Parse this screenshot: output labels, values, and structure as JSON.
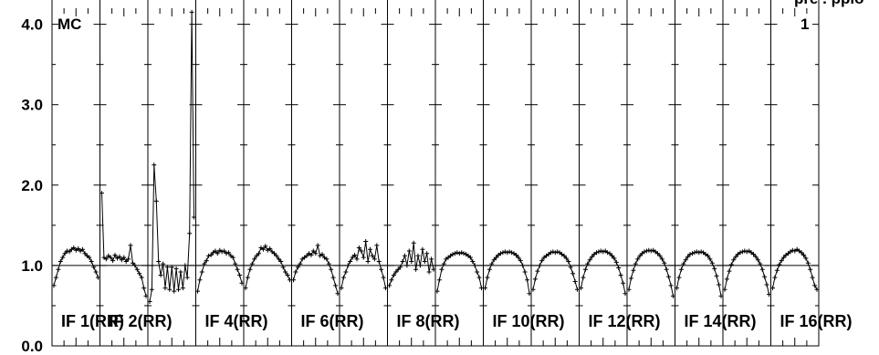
{
  "chart_data": {
    "type": "line",
    "ylim": [
      0,
      4.2
    ],
    "yticks": [
      "0.0",
      "1.0",
      "2.0",
      "3.0",
      "4.0"
    ],
    "corner_left": "MC",
    "corner_right": "1",
    "grid": true,
    "panels": [
      {
        "label": "IF 1(RR)",
        "values": [
          0.75,
          0.85,
          0.95,
          1.05,
          1.1,
          1.15,
          1.18,
          1.17,
          1.2,
          1.22,
          1.19,
          1.21,
          1.18,
          1.2,
          1.15,
          1.12,
          1.1,
          1.05,
          0.98,
          0.92,
          0.85
        ]
      },
      {
        "label": "IF 2(RR)",
        "values": [
          1.9,
          1.1,
          1.08,
          1.12,
          1.1,
          1.06,
          1.13,
          1.09,
          1.11,
          1.07,
          1.1,
          1.05,
          1.08,
          1.25,
          1.03,
          1.0,
          0.95,
          0.9,
          0.85,
          0.72,
          0.62
        ]
      },
      {
        "label": "",
        "values": [
          0.55,
          0.7,
          2.25,
          1.8,
          1.05,
          0.88,
          1.02,
          0.72,
          0.98,
          0.7,
          0.98,
          0.68,
          0.96,
          0.7,
          0.92,
          0.72,
          1.0,
          0.85,
          1.4,
          4.15,
          1.6
        ]
      },
      {
        "label": "IF 4(RR)",
        "values": [
          0.68,
          0.82,
          0.92,
          1.02,
          1.06,
          1.12,
          1.13,
          1.16,
          1.18,
          1.15,
          1.19,
          1.17,
          1.18,
          1.15,
          1.16,
          1.12,
          1.1,
          1.02,
          0.95,
          0.88,
          0.78
        ]
      },
      {
        "label": "",
        "values": [
          0.72,
          0.85,
          0.95,
          1.02,
          1.08,
          1.12,
          1.15,
          1.22,
          1.2,
          1.24,
          1.19,
          1.21,
          1.17,
          1.15,
          1.12,
          1.08,
          1.05,
          0.98,
          0.92,
          0.88,
          0.82
        ]
      },
      {
        "label": "IF 6(RR)",
        "values": [
          0.82,
          0.92,
          0.98,
          1.02,
          1.08,
          1.1,
          1.12,
          1.15,
          1.13,
          1.18,
          1.15,
          1.25,
          1.12,
          1.14,
          1.1,
          1.08,
          1.02,
          0.95,
          0.85,
          0.75,
          0.65
        ]
      },
      {
        "label": "",
        "values": [
          0.72,
          0.85,
          0.92,
          1.0,
          1.05,
          1.1,
          1.13,
          1.08,
          1.22,
          1.18,
          1.1,
          1.3,
          1.05,
          1.2,
          1.12,
          1.08,
          1.25,
          1.05,
          0.95,
          0.85,
          0.72
        ]
      },
      {
        "label": "IF 8(RR)",
        "values": [
          0.75,
          0.82,
          0.88,
          0.92,
          0.95,
          0.98,
          1.05,
          1.12,
          1.0,
          1.18,
          1.05,
          1.28,
          0.95,
          1.12,
          1.0,
          1.2,
          1.05,
          1.15,
          0.92,
          1.08,
          0.95
        ]
      },
      {
        "label": "",
        "values": [
          0.68,
          0.82,
          0.95,
          1.02,
          1.08,
          1.1,
          1.12,
          1.14,
          1.15,
          1.16,
          1.15,
          1.16,
          1.15,
          1.14,
          1.12,
          1.1,
          1.05,
          1.0,
          0.92,
          0.85,
          0.72
        ]
      },
      {
        "label": "IF 10(RR)",
        "values": [
          0.72,
          0.85,
          0.95,
          1.02,
          1.07,
          1.1,
          1.13,
          1.15,
          1.16,
          1.17,
          1.16,
          1.17,
          1.16,
          1.15,
          1.13,
          1.1,
          1.06,
          1.0,
          0.92,
          0.82,
          0.65
        ]
      },
      {
        "label": "",
        "values": [
          0.7,
          0.83,
          0.93,
          1.0,
          1.06,
          1.1,
          1.12,
          1.14,
          1.16,
          1.17,
          1.16,
          1.17,
          1.16,
          1.14,
          1.12,
          1.09,
          1.05,
          0.98,
          0.9,
          0.8,
          0.7
        ]
      },
      {
        "label": "IF 12(RR)",
        "values": [
          0.72,
          0.85,
          0.95,
          1.02,
          1.07,
          1.11,
          1.14,
          1.16,
          1.17,
          1.18,
          1.17,
          1.18,
          1.16,
          1.15,
          1.12,
          1.09,
          1.04,
          0.97,
          0.88,
          0.78,
          0.65
        ]
      },
      {
        "label": "",
        "values": [
          0.7,
          0.84,
          0.94,
          1.02,
          1.08,
          1.12,
          1.15,
          1.17,
          1.18,
          1.19,
          1.18,
          1.19,
          1.17,
          1.15,
          1.12,
          1.08,
          1.03,
          0.95,
          0.86,
          0.75,
          0.62
        ]
      },
      {
        "label": "IF 14(RR)",
        "values": [
          0.72,
          0.85,
          0.95,
          1.02,
          1.07,
          1.11,
          1.14,
          1.15,
          1.16,
          1.17,
          1.16,
          1.17,
          1.16,
          1.14,
          1.12,
          1.08,
          1.03,
          0.96,
          0.87,
          0.76,
          0.62
        ]
      },
      {
        "label": "",
        "values": [
          0.7,
          0.83,
          0.93,
          1.01,
          1.07,
          1.11,
          1.14,
          1.16,
          1.17,
          1.18,
          1.17,
          1.18,
          1.16,
          1.14,
          1.11,
          1.07,
          1.02,
          0.95,
          0.86,
          0.76,
          0.64
        ]
      },
      {
        "label": "IF 16(RR)",
        "values": [
          0.72,
          0.85,
          0.94,
          1.01,
          1.06,
          1.1,
          1.13,
          1.15,
          1.17,
          1.19,
          1.18,
          1.2,
          1.18,
          1.16,
          1.13,
          1.09,
          1.03,
          0.95,
          0.85,
          0.75,
          0.7
        ]
      }
    ],
    "top_text": "pre . pplo"
  }
}
